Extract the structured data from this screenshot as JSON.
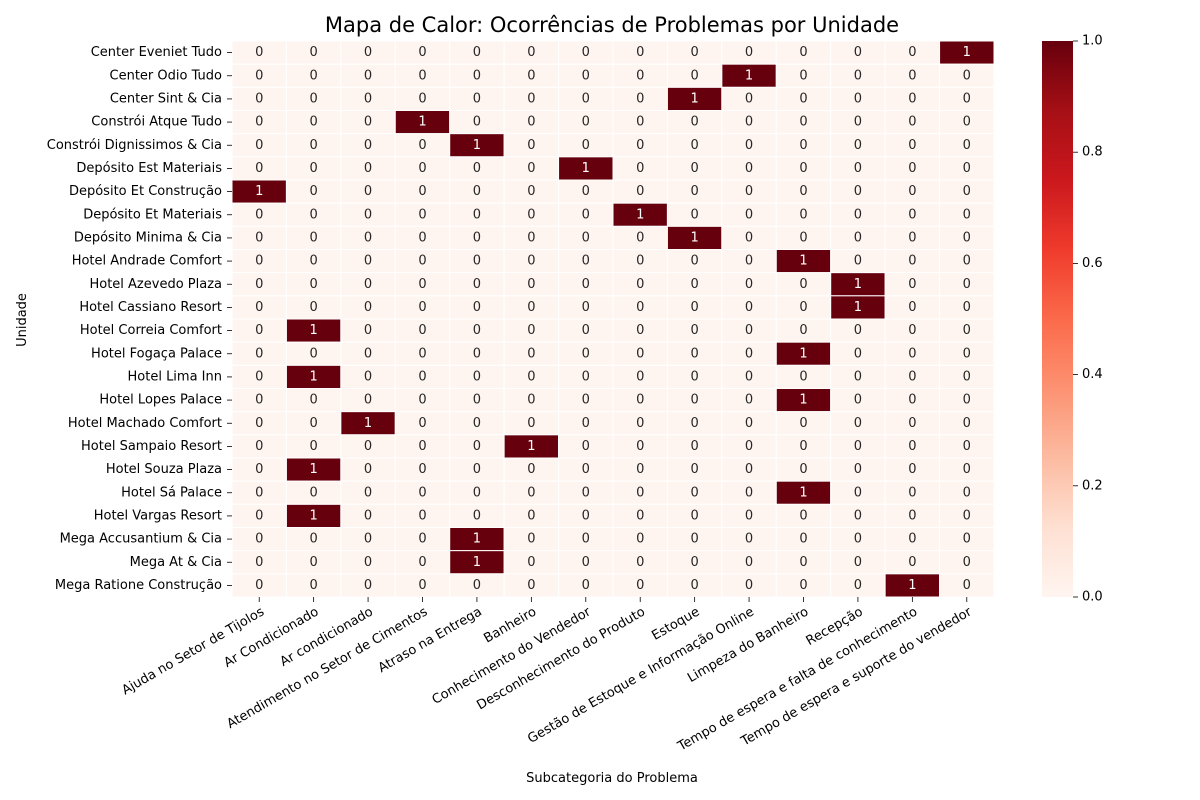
{
  "chart_data": {
    "type": "heatmap",
    "title": "Mapa de Calor: Ocorrências de Problemas por Unidade",
    "xlabel": "Subcategoria do Problema",
    "ylabel": "Unidade",
    "x_categories": [
      "Ajuda no Setor de Tijolos",
      "Ar Condicionado",
      "Ar condicionado",
      "Atendimento no Setor de Cimentos",
      "Atraso na Entrega",
      "Banheiro",
      "Conhecimento do Vendedor",
      "Desconhecimento do Produto",
      "Estoque",
      "Gestão de Estoque e Informação Online",
      "Limpeza do Banheiro",
      "Recepção",
      "Tempo de espera e falta de conhecimento",
      "Tempo de espera e suporte do vendedor"
    ],
    "y_categories": [
      "Center Eveniet Tudo",
      "Center Odio Tudo",
      "Center Sint & Cia",
      "Constrói Atque Tudo",
      "Constrói Dignissimos & Cia",
      "Depósito Est Materiais",
      "Depósito Et Construção",
      "Depósito Et Materiais",
      "Depósito Minima & Cia",
      "Hotel Andrade Comfort",
      "Hotel Azevedo Plaza",
      "Hotel Cassiano Resort",
      "Hotel Correia Comfort",
      "Hotel Fogaça Palace",
      "Hotel Lima Inn",
      "Hotel Lopes Palace",
      "Hotel Machado Comfort",
      "Hotel Sampaio Resort",
      "Hotel Souza Plaza",
      "Hotel Sá Palace",
      "Hotel Vargas Resort",
      "Mega Accusantium & Cia",
      "Mega At & Cia",
      "Mega Ratione Construção"
    ],
    "values": [
      [
        0,
        0,
        0,
        0,
        0,
        0,
        0,
        0,
        0,
        0,
        0,
        0,
        0,
        1
      ],
      [
        0,
        0,
        0,
        0,
        0,
        0,
        0,
        0,
        0,
        1,
        0,
        0,
        0,
        0
      ],
      [
        0,
        0,
        0,
        0,
        0,
        0,
        0,
        0,
        1,
        0,
        0,
        0,
        0,
        0
      ],
      [
        0,
        0,
        0,
        1,
        0,
        0,
        0,
        0,
        0,
        0,
        0,
        0,
        0,
        0
      ],
      [
        0,
        0,
        0,
        0,
        1,
        0,
        0,
        0,
        0,
        0,
        0,
        0,
        0,
        0
      ],
      [
        0,
        0,
        0,
        0,
        0,
        0,
        1,
        0,
        0,
        0,
        0,
        0,
        0,
        0
      ],
      [
        1,
        0,
        0,
        0,
        0,
        0,
        0,
        0,
        0,
        0,
        0,
        0,
        0,
        0
      ],
      [
        0,
        0,
        0,
        0,
        0,
        0,
        0,
        1,
        0,
        0,
        0,
        0,
        0,
        0
      ],
      [
        0,
        0,
        0,
        0,
        0,
        0,
        0,
        0,
        1,
        0,
        0,
        0,
        0,
        0
      ],
      [
        0,
        0,
        0,
        0,
        0,
        0,
        0,
        0,
        0,
        0,
        1,
        0,
        0,
        0
      ],
      [
        0,
        0,
        0,
        0,
        0,
        0,
        0,
        0,
        0,
        0,
        0,
        1,
        0,
        0
      ],
      [
        0,
        0,
        0,
        0,
        0,
        0,
        0,
        0,
        0,
        0,
        0,
        1,
        0,
        0
      ],
      [
        0,
        1,
        0,
        0,
        0,
        0,
        0,
        0,
        0,
        0,
        0,
        0,
        0,
        0
      ],
      [
        0,
        0,
        0,
        0,
        0,
        0,
        0,
        0,
        0,
        0,
        1,
        0,
        0,
        0
      ],
      [
        0,
        1,
        0,
        0,
        0,
        0,
        0,
        0,
        0,
        0,
        0,
        0,
        0,
        0
      ],
      [
        0,
        0,
        0,
        0,
        0,
        0,
        0,
        0,
        0,
        0,
        1,
        0,
        0,
        0
      ],
      [
        0,
        0,
        1,
        0,
        0,
        0,
        0,
        0,
        0,
        0,
        0,
        0,
        0,
        0
      ],
      [
        0,
        0,
        0,
        0,
        0,
        1,
        0,
        0,
        0,
        0,
        0,
        0,
        0,
        0
      ],
      [
        0,
        1,
        0,
        0,
        0,
        0,
        0,
        0,
        0,
        0,
        0,
        0,
        0,
        0
      ],
      [
        0,
        0,
        0,
        0,
        0,
        0,
        0,
        0,
        0,
        0,
        1,
        0,
        0,
        0
      ],
      [
        0,
        1,
        0,
        0,
        0,
        0,
        0,
        0,
        0,
        0,
        0,
        0,
        0,
        0
      ],
      [
        0,
        0,
        0,
        0,
        1,
        0,
        0,
        0,
        0,
        0,
        0,
        0,
        0,
        0
      ],
      [
        0,
        0,
        0,
        0,
        1,
        0,
        0,
        0,
        0,
        0,
        0,
        0,
        0,
        0
      ],
      [
        0,
        0,
        0,
        0,
        0,
        0,
        0,
        0,
        0,
        0,
        0,
        0,
        1,
        0
      ]
    ],
    "colormap": "Reds",
    "colorbar": {
      "range": [
        0,
        1
      ],
      "ticks": [
        "0.0",
        "0.2",
        "0.4",
        "0.6",
        "0.8",
        "1.0"
      ]
    },
    "annotated": true,
    "colors": {
      "low": "#fff5f0",
      "high": "#67000d",
      "grid_line": "#ffffff"
    }
  }
}
